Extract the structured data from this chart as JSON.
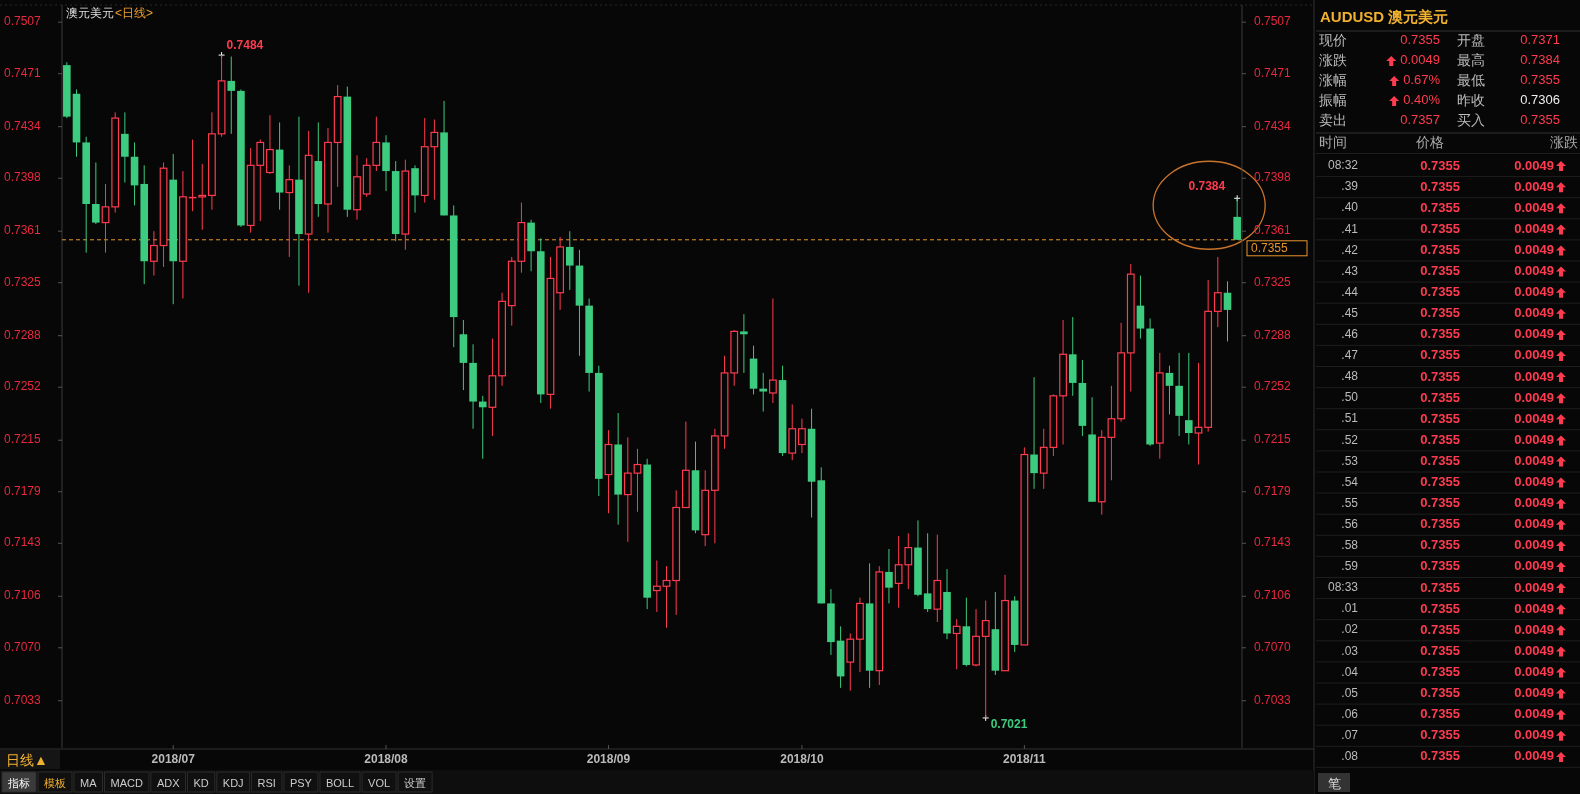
{
  "chart_data": [
    {
      "type": "candlestick",
      "title": "澳元美元",
      "subtitle": "<日线>",
      "categories": [
        null,
        null,
        null,
        null,
        null,
        null,
        null,
        null,
        null,
        null,
        null,
        "2018/07",
        null,
        null,
        null,
        null,
        null,
        null,
        null,
        null,
        null,
        null,
        null,
        null,
        null,
        null,
        null,
        null,
        null,
        null,
        null,
        null,
        null,
        "2018/08",
        null,
        null,
        null,
        null,
        null,
        null,
        null,
        null,
        null,
        null,
        null,
        null,
        null,
        null,
        null,
        null,
        null,
        null,
        null,
        null,
        null,
        null,
        "2018/09",
        null,
        null,
        null,
        null,
        null,
        null,
        null,
        null,
        null,
        null,
        null,
        null,
        null,
        null,
        null,
        null,
        null,
        null,
        null,
        "2018/10",
        null,
        null,
        null,
        null,
        null,
        null,
        null,
        null,
        null,
        null,
        null,
        null,
        null,
        null,
        null,
        null,
        null,
        null,
        null,
        null,
        null,
        null,
        "2018/11",
        null,
        null,
        null,
        null,
        null,
        null,
        null,
        null,
        null,
        null,
        null,
        null,
        null,
        null,
        null,
        null,
        null,
        null,
        null,
        null,
        null,
        null
      ],
      "ohlc": [
        [
          0.7477,
          0.7479,
          0.744,
          0.7441
        ],
        [
          0.7457,
          0.746,
          0.7413,
          0.7423
        ],
        [
          0.7423,
          0.7427,
          0.7346,
          0.738
        ],
        [
          0.738,
          0.7409,
          0.7366,
          0.7367
        ],
        [
          0.7367,
          0.7394,
          0.7346,
          0.7378
        ],
        [
          0.7378,
          0.7444,
          0.7374,
          0.744
        ],
        [
          0.7429,
          0.7444,
          0.7395,
          0.7413
        ],
        [
          0.7413,
          0.7423,
          0.7379,
          0.7393
        ],
        [
          0.7394,
          0.7407,
          0.7324,
          0.734
        ],
        [
          0.734,
          0.7361,
          0.733,
          0.7351
        ],
        [
          0.7351,
          0.7409,
          0.7336,
          0.7405
        ],
        [
          0.7397,
          0.7415,
          0.731,
          0.734
        ],
        [
          0.734,
          0.7403,
          0.7314,
          0.7385
        ],
        [
          0.7385,
          0.7425,
          0.7375,
          0.7385
        ],
        [
          0.7385,
          0.7408,
          0.7362,
          0.7386
        ],
        [
          0.7386,
          0.7444,
          0.7376,
          0.7429
        ],
        [
          0.7429,
          0.7484,
          0.7427,
          0.7466
        ],
        [
          0.7466,
          0.7483,
          0.7429,
          0.7459
        ],
        [
          0.7459,
          0.746,
          0.7364,
          0.7365
        ],
        [
          0.7365,
          0.7419,
          0.736,
          0.7407
        ],
        [
          0.7407,
          0.7425,
          0.7368,
          0.7423
        ],
        [
          0.7402,
          0.7442,
          0.7401,
          0.7418
        ],
        [
          0.7418,
          0.7437,
          0.7376,
          0.7388
        ],
        [
          0.7388,
          0.7407,
          0.7343,
          0.7397
        ],
        [
          0.7397,
          0.7441,
          0.7323,
          0.7359
        ],
        [
          0.7359,
          0.7431,
          0.7318,
          0.7414
        ],
        [
          0.741,
          0.7437,
          0.7371,
          0.738
        ],
        [
          0.738,
          0.7433,
          0.736,
          0.7423
        ],
        [
          0.7423,
          0.7463,
          0.7392,
          0.7455
        ],
        [
          0.7455,
          0.7462,
          0.7371,
          0.7376
        ],
        [
          0.7376,
          0.7414,
          0.7369,
          0.7399
        ],
        [
          0.7387,
          0.7412,
          0.7385,
          0.7407
        ],
        [
          0.7407,
          0.7441,
          0.7403,
          0.7423
        ],
        [
          0.7423,
          0.7428,
          0.7389,
          0.7403
        ],
        [
          0.7403,
          0.741,
          0.7354,
          0.7359
        ],
        [
          0.7359,
          0.7411,
          0.7348,
          0.7403
        ],
        [
          0.7405,
          0.7407,
          0.7374,
          0.7386
        ],
        [
          0.7386,
          0.744,
          0.7381,
          0.742
        ],
        [
          0.742,
          0.7439,
          0.7383,
          0.743
        ],
        [
          0.743,
          0.7452,
          0.7372,
          0.7372
        ],
        [
          0.7372,
          0.7379,
          0.728,
          0.7301
        ],
        [
          0.7289,
          0.7299,
          0.725,
          0.7269
        ],
        [
          0.7269,
          0.7282,
          0.7223,
          0.7242
        ],
        [
          0.7242,
          0.7246,
          0.7202,
          0.7238
        ],
        [
          0.7238,
          0.7286,
          0.7218,
          0.726
        ],
        [
          0.726,
          0.7318,
          0.7253,
          0.7312
        ],
        [
          0.7309,
          0.7343,
          0.7295,
          0.734
        ],
        [
          0.734,
          0.7381,
          0.7332,
          0.7367
        ],
        [
          0.7367,
          0.7369,
          0.7333,
          0.7347
        ],
        [
          0.7347,
          0.7356,
          0.7241,
          0.7247
        ],
        [
          0.7247,
          0.7343,
          0.7237,
          0.7328
        ],
        [
          0.7318,
          0.7357,
          0.7306,
          0.735
        ],
        [
          0.735,
          0.7361,
          0.732,
          0.7337
        ],
        [
          0.7337,
          0.7348,
          0.7274,
          0.7309
        ],
        [
          0.7309,
          0.7314,
          0.7249,
          0.7262
        ],
        [
          0.7262,
          0.7267,
          0.7176,
          0.7188
        ],
        [
          0.7191,
          0.7222,
          0.7164,
          0.7212
        ],
        [
          0.7212,
          0.7234,
          0.7156,
          0.7177
        ],
        [
          0.7177,
          0.7217,
          0.7144,
          0.7192
        ],
        [
          0.7192,
          0.7209,
          0.7165,
          0.7198
        ],
        [
          0.7198,
          0.7202,
          0.7097,
          0.7105
        ],
        [
          0.711,
          0.7131,
          0.7095,
          0.7113
        ],
        [
          0.7113,
          0.7127,
          0.7084,
          0.7117
        ],
        [
          0.7117,
          0.718,
          0.7093,
          0.7168
        ],
        [
          0.7168,
          0.7228,
          0.7168,
          0.7194
        ],
        [
          0.7194,
          0.7214,
          0.715,
          0.7152
        ],
        [
          0.7149,
          0.7194,
          0.7141,
          0.718
        ],
        [
          0.718,
          0.7223,
          0.7143,
          0.7218
        ],
        [
          0.7218,
          0.7274,
          0.7209,
          0.7262
        ],
        [
          0.7262,
          0.7292,
          0.7253,
          0.7291
        ],
        [
          0.7291,
          0.7303,
          0.7262,
          0.7289
        ],
        [
          0.7272,
          0.7281,
          0.7247,
          0.7251
        ],
        [
          0.7251,
          0.7262,
          0.7235,
          0.7249
        ],
        [
          0.7248,
          0.7314,
          0.7241,
          0.7257
        ],
        [
          0.7257,
          0.7267,
          0.7204,
          0.7206
        ],
        [
          0.7206,
          0.724,
          0.7201,
          0.7223
        ],
        [
          0.7212,
          0.723,
          0.7206,
          0.7223
        ],
        [
          0.7223,
          0.7237,
          0.7161,
          0.7186
        ],
        [
          0.7187,
          0.7196,
          0.7101,
          0.7101
        ],
        [
          0.7101,
          0.7111,
          0.7065,
          0.7074
        ],
        [
          0.7075,
          0.7085,
          0.7042,
          0.705
        ],
        [
          0.706,
          0.708,
          0.704,
          0.7076
        ],
        [
          0.7076,
          0.7105,
          0.7053,
          0.7101
        ],
        [
          0.7101,
          0.7129,
          0.7042,
          0.7054
        ],
        [
          0.7054,
          0.7127,
          0.7044,
          0.7123
        ],
        [
          0.7123,
          0.7139,
          0.7101,
          0.7112
        ],
        [
          0.7115,
          0.7148,
          0.7098,
          0.7128
        ],
        [
          0.7128,
          0.715,
          0.7111,
          0.714
        ],
        [
          0.714,
          0.7159,
          0.7106,
          0.7107
        ],
        [
          0.7108,
          0.715,
          0.7095,
          0.7097
        ],
        [
          0.7097,
          0.7149,
          0.7088,
          0.7117
        ],
        [
          0.7109,
          0.7125,
          0.7076,
          0.708
        ],
        [
          0.708,
          0.709,
          0.7055,
          0.7085
        ],
        [
          0.7085,
          0.7105,
          0.7057,
          0.7058
        ],
        [
          0.7058,
          0.7097,
          0.7057,
          0.7078
        ],
        [
          0.7078,
          0.7103,
          0.7021,
          0.7089
        ],
        [
          0.7083,
          0.7109,
          0.7051,
          0.7054
        ],
        [
          0.7054,
          0.7121,
          0.7054,
          0.7103
        ],
        [
          0.7103,
          0.7106,
          0.7067,
          0.7072
        ],
        [
          0.7072,
          0.721,
          0.7072,
          0.7205
        ],
        [
          0.7205,
          0.7259,
          0.7181,
          0.7192
        ],
        [
          0.7192,
          0.7223,
          0.7181,
          0.721
        ],
        [
          0.721,
          0.7247,
          0.7204,
          0.7246
        ],
        [
          0.7246,
          0.7299,
          0.7212,
          0.7275
        ],
        [
          0.7275,
          0.7301,
          0.7246,
          0.7255
        ],
        [
          0.7255,
          0.7271,
          0.7218,
          0.7225
        ],
        [
          0.7219,
          0.7245,
          0.7172,
          0.7172
        ],
        [
          0.7172,
          0.7222,
          0.7163,
          0.7217
        ],
        [
          0.7217,
          0.7253,
          0.7187,
          0.723
        ],
        [
          0.723,
          0.7297,
          0.7228,
          0.7276
        ],
        [
          0.7276,
          0.7338,
          0.7249,
          0.7331
        ],
        [
          0.7309,
          0.733,
          0.7286,
          0.7293
        ],
        [
          0.7293,
          0.73,
          0.7211,
          0.7212
        ],
        [
          0.7213,
          0.7276,
          0.7202,
          0.7262
        ],
        [
          0.7262,
          0.7267,
          0.7233,
          0.7253
        ],
        [
          0.7253,
          0.7276,
          0.7218,
          0.7232
        ],
        [
          0.7229,
          0.7276,
          0.7212,
          0.722
        ],
        [
          0.722,
          0.7269,
          0.7198,
          0.7224
        ],
        [
          0.7224,
          0.7327,
          0.7221,
          0.7305
        ],
        [
          0.7305,
          0.7343,
          0.7294,
          0.7318
        ],
        [
          0.7318,
          0.7326,
          0.7284,
          0.7306
        ],
        [
          0.7371,
          0.7384,
          0.7355,
          0.7355
        ]
      ],
      "colors": [
        "#3ccb7f",
        "#3ccb7f",
        "#3ccb7f",
        "#3ccb7f",
        "#ff3b4f",
        "#ff3b4f",
        "#3ccb7f",
        "#3ccb7f",
        "#3ccb7f",
        "#ff3b4f",
        "#ff3b4f",
        "#3ccb7f",
        "#ff3b4f",
        "#ff3b4f",
        "#ff3b4f",
        "#ff3b4f",
        "#ff3b4f",
        "#3ccb7f",
        "#3ccb7f",
        "#ff3b4f",
        "#ff3b4f",
        "#ff3b4f",
        "#3ccb7f",
        "#ff3b4f",
        "#3ccb7f",
        "#ff3b4f",
        "#3ccb7f",
        "#ff3b4f",
        "#ff3b4f",
        "#3ccb7f",
        "#ff3b4f",
        "#ff3b4f",
        "#ff3b4f",
        "#3ccb7f",
        "#3ccb7f",
        "#ff3b4f",
        "#3ccb7f",
        "#ff3b4f",
        "#ff3b4f",
        "#3ccb7f",
        "#3ccb7f",
        "#3ccb7f",
        "#3ccb7f",
        "#3ccb7f",
        "#ff3b4f",
        "#ff3b4f",
        "#ff3b4f",
        "#ff3b4f",
        "#3ccb7f",
        "#3ccb7f",
        "#ff3b4f",
        "#ff3b4f",
        "#3ccb7f",
        "#3ccb7f",
        "#3ccb7f",
        "#3ccb7f",
        "#ff3b4f",
        "#3ccb7f",
        "#ff3b4f",
        "#ff3b4f",
        "#3ccb7f",
        "#ff3b4f",
        "#ff3b4f",
        "#ff3b4f",
        "#ff3b4f",
        "#3ccb7f",
        "#ff3b4f",
        "#ff3b4f",
        "#ff3b4f",
        "#ff3b4f",
        "#3ccb7f",
        "#3ccb7f",
        "#3ccb7f",
        "#ff3b4f",
        "#3ccb7f",
        "#ff3b4f",
        "#ff3b4f",
        "#3ccb7f",
        "#3ccb7f",
        "#3ccb7f",
        "#3ccb7f",
        "#ff3b4f",
        "#ff3b4f",
        "#3ccb7f",
        "#ff3b4f",
        "#3ccb7f",
        "#ff3b4f",
        "#ff3b4f",
        "#3ccb7f",
        "#3ccb7f",
        "#ff3b4f",
        "#3ccb7f",
        "#ff3b4f",
        "#3ccb7f",
        "#ff3b4f",
        "#ff3b4f",
        "#3ccb7f",
        "#ff3b4f",
        "#3ccb7f",
        "#ff3b4f",
        "#3ccb7f",
        "#ff3b4f",
        "#ff3b4f",
        "#ff3b4f",
        "#3ccb7f",
        "#3ccb7f",
        "#3ccb7f",
        "#ff3b4f",
        "#ff3b4f",
        "#ff3b4f",
        "#ff3b4f",
        "#3ccb7f",
        "#3ccb7f",
        "#ff3b4f",
        "#3ccb7f",
        "#3ccb7f",
        "#3ccb7f",
        "#ff3b4f",
        "#ff3b4f",
        "#ff3b4f",
        "#3ccb7f",
        "#3ccb7f"
      ],
      "ylim": [
        0.7,
        0.7519
      ],
      "yticks": [
        0.7507,
        0.7471,
        0.7434,
        0.7398,
        0.7361,
        0.7325,
        0.7288,
        0.7252,
        0.7215,
        0.7179,
        0.7143,
        0.7106,
        {
          "value": 0.707,
          "label": "0.7070"
        },
        0.7033
      ],
      "y2lim": [
        0.7,
        0.7519
      ],
      "y2ticks": [
        0.7507,
        0.7471,
        0.7434,
        0.7398,
        0.7361,
        0.7325,
        0.7288,
        0.7252,
        0.7215,
        0.7179,
        0.7143,
        0.7106,
        {
          "value": 0.707,
          "label": "0.7070"
        },
        0.7033
      ],
      "ref_lines": [
        {
          "axis": "y",
          "value": 0.7355,
          "label": "0.7355",
          "color": "#e8952e",
          "line_style": "dashed"
        }
      ],
      "annotations": [
        "0.7484",
        "0.7384",
        "0.7021",
        "日线▲",
        "指标",
        "模板",
        "MA",
        "MACD",
        "ADX",
        "KD",
        "KDJ",
        "RSI",
        "PSY",
        "BOLL",
        "VOL",
        "设置"
      ]
    },
    {
      "type": "other",
      "title": "AUDUSD 澳元美元",
      "annotations": [
        "现价",
        "0.7355",
        "开盘",
        "0.7371",
        "涨跌",
        "0.0049",
        "最高",
        "0.7384",
        "涨幅",
        "0.67%",
        "最低",
        "0.7355",
        "振幅",
        "0.40%",
        "昨收",
        "0.7306",
        "卖出",
        "0.7357",
        "买入",
        "0.7355",
        "时间",
        "价格",
        "涨跌",
        "08:32",
        "0.7355",
        "0.0049",
        ".39",
        "0.7355",
        "0.0049",
        ".40",
        "0.7355",
        "0.0049",
        ".41",
        "0.7355",
        "0.0049",
        ".42",
        "0.7355",
        "0.0049",
        ".43",
        "0.7355",
        "0.0049",
        ".44",
        "0.7355",
        "0.0049",
        ".45",
        "0.7355",
        "0.0049",
        ".46",
        "0.7355",
        "0.0049",
        ".47",
        "0.7355",
        "0.0049",
        ".48",
        "0.7355",
        "0.0049",
        ".50",
        "0.7355",
        "0.0049",
        ".51",
        "0.7355",
        "0.0049",
        ".52",
        "0.7355",
        "0.0049",
        ".53",
        "0.7355",
        "0.0049",
        ".54",
        "0.7355",
        "0.0049",
        ".55",
        "0.7355",
        "0.0049",
        ".56",
        "0.7355",
        "0.0049",
        ".58",
        "0.7355",
        "0.0049",
        ".59",
        "0.7355",
        "0.0049",
        "08:33",
        "0.7355",
        "0.0049",
        ".01",
        "0.7355",
        "0.0049",
        ".02",
        "0.7355",
        "0.0049",
        ".03",
        "0.7355",
        "0.0049",
        ".04",
        "0.7355",
        "0.0049",
        ".05",
        "0.7355",
        "0.0049",
        ".06",
        "0.7355",
        "0.0049",
        ".07",
        "0.7355",
        "0.0049",
        ".08",
        "0.7355",
        "0.0049",
        "笔"
      ]
    }
  ]
}
